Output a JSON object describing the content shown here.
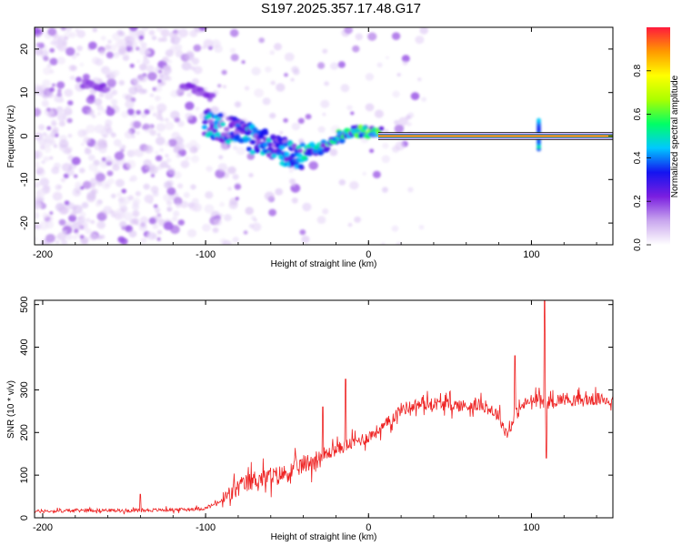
{
  "title": "S197.2025.357.17.48.G17",
  "chart_data": [
    {
      "type": "heatmap",
      "name": "spectrogram",
      "xlabel": "Height of straight line (km)",
      "ylabel": "Frequency (Hz)",
      "xlim": [
        -205,
        150
      ],
      "ylim": [
        -25,
        25
      ],
      "xticks": [
        -200,
        -100,
        0,
        100
      ],
      "yticks": [
        -20,
        -10,
        0,
        10,
        20
      ],
      "colorbar": {
        "label": "Normalized spectral amplitude",
        "range": [
          0,
          1
        ],
        "ticks": [
          "0.0",
          "0.2",
          "0.4",
          "0.6",
          "0.8"
        ],
        "colors": [
          "#ffffff",
          "#c9a6ee",
          "#7a1ee0",
          "#1414f0",
          "#00c8ff",
          "#00ff66",
          "#aaff00",
          "#ffff00",
          "#ff9900",
          "#ff1a3c"
        ]
      },
      "ridge": {
        "x": [
          -100,
          -90,
          -80,
          -70,
          -60,
          -50,
          -40,
          -35,
          -30,
          -25,
          -20,
          -15,
          -10,
          -5,
          0,
          5,
          10,
          50,
          100,
          150
        ],
        "freq": [
          3,
          2,
          1,
          -1,
          -2,
          -4,
          -5,
          -3,
          -3,
          -2,
          0,
          0,
          1,
          1,
          1,
          1,
          0,
          0,
          0,
          0
        ]
      },
      "early_ridge": {
        "x": [
          -175,
          -165,
          -110,
          -95
        ],
        "freq": [
          12,
          11,
          11,
          9
        ]
      }
    },
    {
      "type": "line",
      "name": "snr",
      "xlabel": "Height of straight line (km)",
      "ylabel": "SNR (10 * v/v)",
      "xlim": [
        -205,
        150
      ],
      "ylim": [
        0,
        510
      ],
      "xticks": [
        -200,
        -100,
        0,
        100
      ],
      "yticks": [
        0,
        100,
        200,
        300,
        400,
        500
      ],
      "color": "#ee2222",
      "series": [
        {
          "name": "SNR",
          "x": [
            -205,
            -190,
            -170,
            -150,
            -130,
            -110,
            -100,
            -90,
            -80,
            -70,
            -60,
            -50,
            -40,
            -30,
            -20,
            -10,
            0,
            10,
            20,
            30,
            40,
            50,
            60,
            70,
            80,
            85,
            90,
            95,
            100,
            105,
            110,
            120,
            130,
            140,
            150
          ],
          "y": [
            15,
            16,
            18,
            17,
            18,
            20,
            22,
            40,
            70,
            90,
            95,
            105,
            125,
            140,
            160,
            175,
            190,
            215,
            255,
            265,
            268,
            265,
            262,
            265,
            240,
            195,
            240,
            265,
            275,
            275,
            270,
            280,
            275,
            278,
            275
          ]
        }
      ],
      "spikes": [
        {
          "x": -140,
          "y": 55
        },
        {
          "x": -28,
          "y": 260
        },
        {
          "x": -14,
          "y": 325
        },
        {
          "x": 90,
          "y": 380
        },
        {
          "x": 108,
          "y": 510
        },
        {
          "x": 109,
          "y": 140
        }
      ]
    }
  ]
}
